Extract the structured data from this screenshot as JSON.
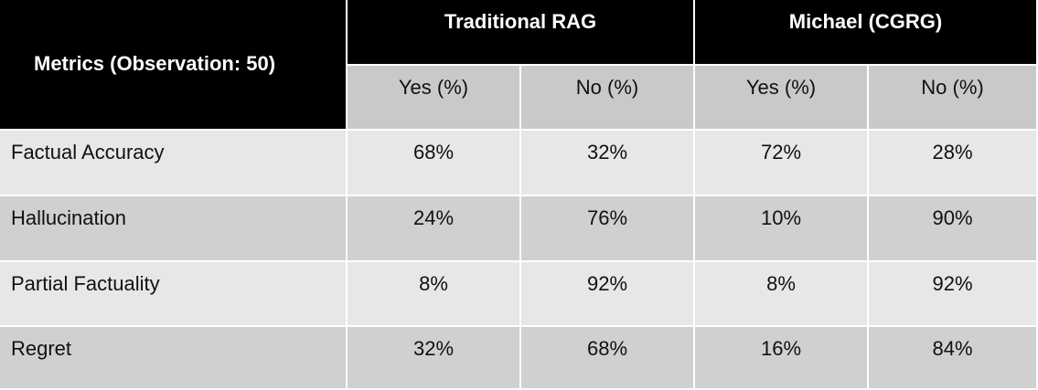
{
  "header": {
    "metrics_label": "Metrics (Observation: 50)",
    "groups": [
      "Traditional RAG",
      "Michael (CGRG)"
    ],
    "subheaders": [
      "Yes (%)",
      "No (%)",
      "Yes (%)",
      "No (%)"
    ]
  },
  "table": {
    "rows": [
      [
        "Factual Accuracy",
        "68%",
        "32%",
        "72%",
        "28%"
      ],
      [
        "Hallucination",
        "24%",
        "76%",
        "10%",
        "90%"
      ],
      [
        "Partial Factuality",
        "8%",
        "92%",
        "8%",
        "92%"
      ],
      [
        "Regret",
        "32%",
        "68%",
        "16%",
        "84%"
      ]
    ]
  }
}
